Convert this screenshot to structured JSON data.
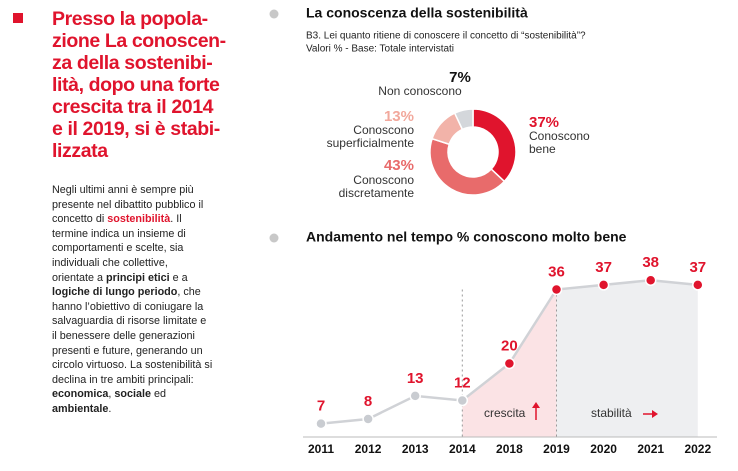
{
  "sidebar": {
    "heading": [
      "Presso la popola-",
      "zione La conoscen-",
      "za della sostenibi-",
      "lità, dopo una forte",
      "crescita tra il 2014",
      "e il 2019, si è stabi-",
      "lizzata"
    ],
    "body": [
      [
        "Negli ultimi anni è sempre più"
      ],
      [
        "presente nel dibattito pubblico il"
      ],
      [
        "concetto di ",
        "sostenibilità",
        ". Il"
      ],
      [
        "termine indica un insieme di"
      ],
      [
        "comportamenti e scelte, sia"
      ],
      [
        "individuali che collettive,"
      ],
      [
        "orientate a ",
        "principi etici",
        " e a"
      ],
      [
        "logiche di lungo periodo",
        ", che"
      ],
      [
        "hanno l’obiettivo di coniugare la"
      ],
      [
        "salvaguardia di risorse limitate e"
      ],
      [
        "il benessere delle generazioni"
      ],
      [
        "presenti e future, generando un"
      ],
      [
        "circolo virtuoso. La sostenibilità si"
      ],
      [
        "declina in tre ambiti principali:"
      ],
      [
        "economica",
        ", ",
        "sociale",
        " ed"
      ],
      [
        "ambientale",
        "."
      ]
    ]
  },
  "chart_data": [
    {
      "type": "pie",
      "title": "La conoscenza della sostenibilità",
      "subtitle": [
        "B3. Lei quanto ritiene di conoscere il concetto di “sostenibilità”?",
        "Valori % - Base: Totale intervistati"
      ],
      "categories": [
        "Conoscono bene",
        "Conoscono discretamente",
        "Conoscono superficialmente",
        "Non conoscono"
      ],
      "values": [
        37,
        43,
        13,
        7
      ],
      "value_labels": [
        "37%",
        "43%",
        "13%",
        "7%"
      ],
      "colors": [
        "#e0142d",
        "#e86b6b",
        "#f2b3a9",
        "#d4d7db"
      ],
      "label_colors": [
        "#e0142d",
        "#e86b6b",
        "#f2a89c",
        "#111111"
      ]
    },
    {
      "type": "line",
      "title": "Andamento nel tempo % conoscono molto bene",
      "categories": [
        "2011",
        "2012",
        "2013",
        "2014",
        "2018",
        "2019",
        "2020",
        "2021",
        "2022"
      ],
      "values": [
        7,
        8,
        13,
        12,
        20,
        36,
        37,
        38,
        37
      ],
      "ylim": [
        0,
        40
      ],
      "color": "#e0142d",
      "annotations": [
        "crescita",
        "stabilità"
      ]
    }
  ]
}
